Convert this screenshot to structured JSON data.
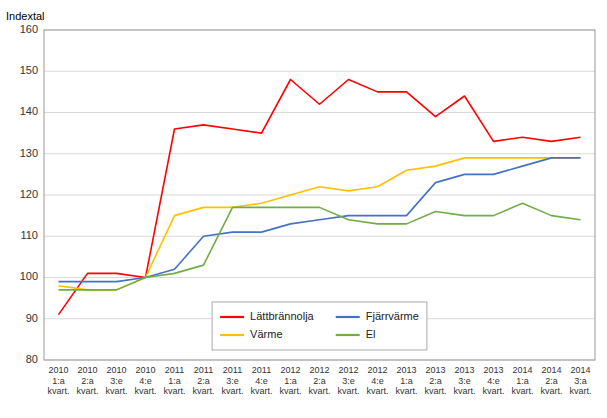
{
  "chart_data": {
    "type": "line",
    "y_label": "Indextal",
    "categories": [
      "2010\n1:a\nkvart.",
      "2010\n2:a\nkvart.",
      "2010\n3:e\nkvart.",
      "2010\n4:e\nkvart.",
      "2011\n1:a\nkvart.",
      "2011\n2:a\nkvart.",
      "2011\n3:e\nkvart.",
      "2011\n4:e\nkvart.",
      "2012\n1:a\nkvart.",
      "2012\n2:a\nkvart.",
      "2012\n3:e\nkvart.",
      "2012\n4:e\nkvart.",
      "2013\n1:a\nkvart.",
      "2013\n2:a\nkvart.",
      "2013\n3:e\nkvart.",
      "2013\n4:e\nkvart.",
      "2014\n1:a\nkvart.",
      "2014\n2:a\nkvart.",
      "2014\n3:a\nkvart."
    ],
    "series": [
      {
        "name": "Lättbrännolja",
        "color": "#FF0000",
        "values": [
          91,
          101,
          101,
          100,
          136,
          137,
          136,
          135,
          148,
          142,
          148,
          145,
          145,
          139,
          144,
          133,
          134,
          133,
          134
        ]
      },
      {
        "name": "Värme",
        "color": "#FFC000",
        "values": [
          98,
          97,
          97,
          100,
          115,
          117,
          117,
          118,
          120,
          122,
          121,
          122,
          126,
          127,
          129,
          129,
          129,
          129,
          129
        ]
      },
      {
        "name": "Fjärrvärme",
        "color": "#4472C4",
        "values": [
          99,
          99,
          99,
          100,
          102,
          110,
          111,
          111,
          113,
          114,
          115,
          115,
          115,
          123,
          125,
          125,
          127,
          129,
          129
        ]
      },
      {
        "name": "El",
        "color": "#70AD47",
        "values": [
          97,
          97,
          97,
          100,
          101,
          103,
          117,
          117,
          117,
          117,
          114,
          113,
          113,
          116,
          115,
          115,
          118,
          115,
          114
        ]
      }
    ],
    "ylim": [
      80,
      160
    ],
    "yticks": [
      80,
      90,
      100,
      110,
      120,
      130,
      140,
      150,
      160
    ],
    "grid": true,
    "legend": "lower center"
  }
}
